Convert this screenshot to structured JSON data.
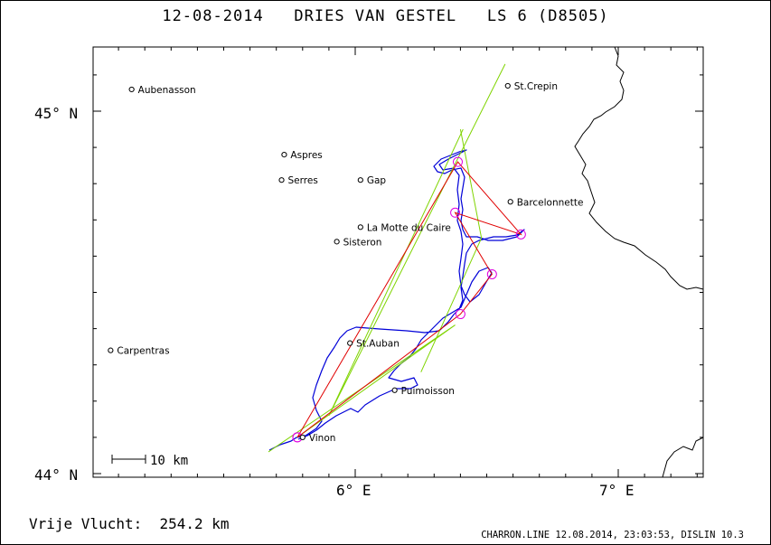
{
  "title": "12-08-2014   DRIES VAN GESTEL   LS 6 (D8505)",
  "axes": {
    "lat_labels": [
      "45° N",
      "44° N"
    ],
    "lon_labels": [
      "6° E",
      "7° E"
    ],
    "lon_range": [
      5.0,
      7.35
    ],
    "lat_range": [
      44.0,
      45.18
    ]
  },
  "scale_bar": {
    "label": "10 km"
  },
  "towns": [
    {
      "name": "Aubenasson",
      "lon": 5.15,
      "lat": 45.06
    },
    {
      "name": "St.Crepin",
      "lon": 6.58,
      "lat": 45.07
    },
    {
      "name": "Aspres",
      "lon": 5.73,
      "lat": 44.88
    },
    {
      "name": "Serres",
      "lon": 5.72,
      "lat": 44.81
    },
    {
      "name": "Gap",
      "lon": 6.02,
      "lat": 44.81
    },
    {
      "name": "Barcelonnette",
      "lon": 6.59,
      "lat": 44.75
    },
    {
      "name": "La Motte du Caire",
      "lon": 6.02,
      "lat": 44.68
    },
    {
      "name": "Sisteron",
      "lon": 5.93,
      "lat": 44.64
    },
    {
      "name": "St.Auban",
      "lon": 5.98,
      "lat": 44.36
    },
    {
      "name": "Carpentras",
      "lon": 5.07,
      "lat": 44.34
    },
    {
      "name": "Puimoisson",
      "lon": 6.15,
      "lat": 44.23
    },
    {
      "name": "Vinon",
      "lon": 5.8,
      "lat": 44.1
    }
  ],
  "task_turnpoints": [
    {
      "lon": 5.78,
      "lat": 44.1
    },
    {
      "lon": 6.39,
      "lat": 44.86
    },
    {
      "lon": 6.63,
      "lat": 44.66
    },
    {
      "lon": 6.38,
      "lat": 44.72
    },
    {
      "lon": 6.52,
      "lat": 44.55
    },
    {
      "lon": 6.4,
      "lat": 44.44
    },
    {
      "lon": 5.78,
      "lat": 44.1
    }
  ],
  "sectors": [
    {
      "apex_lon": 5.9,
      "apex_lat": 44.16,
      "tip1_lon": 6.41,
      "tip1_lat": 44.95,
      "tip2_lon": 6.57,
      "tip2_lat": 45.13
    },
    {
      "apex_lon": 6.48,
      "apex_lat": 44.65,
      "tip1_lon": 6.25,
      "tip1_lat": 44.28,
      "tip2_lon": 6.4,
      "tip2_lat": 44.95
    },
    {
      "apex_lon": 6.38,
      "apex_lat": 44.41,
      "tip1_lon": 5.67,
      "tip1_lat": 44.06,
      "tip2_lon": 5.78,
      "tip2_lat": 44.1
    }
  ],
  "distance": "Vrije Vlucht:  254.2 km",
  "footer": "CHARRON.LINE 12.08.2014, 23:03:53, DISLIN 10.3"
}
